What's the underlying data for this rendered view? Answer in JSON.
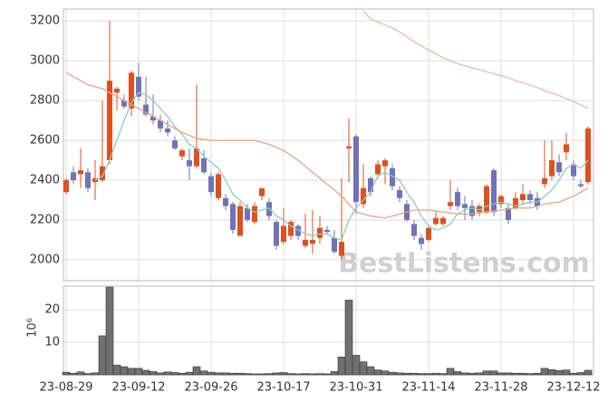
{
  "chart_data": {
    "type": "candlestick",
    "grid": true,
    "up_color": "#e0501e",
    "down_color": "#7272b8",
    "categories": [
      "23-08-29",
      null,
      null,
      null,
      null,
      null,
      null,
      null,
      null,
      null,
      "23-09-12",
      null,
      null,
      null,
      null,
      null,
      null,
      null,
      null,
      null,
      "23-09-26",
      null,
      null,
      null,
      null,
      null,
      null,
      null,
      null,
      null,
      "23-10-17",
      null,
      null,
      null,
      null,
      null,
      null,
      null,
      null,
      null,
      "23-10-31",
      null,
      null,
      null,
      null,
      null,
      null,
      null,
      null,
      null,
      "23-11-14",
      null,
      null,
      null,
      null,
      null,
      null,
      null,
      null,
      null,
      "23-11-28",
      null,
      null,
      null,
      null,
      null,
      null,
      null,
      null,
      null,
      "23-12-12",
      null,
      null
    ],
    "open": [
      2340,
      2440,
      2430,
      2440,
      2390,
      2400,
      2500,
      2840,
      2800,
      2760,
      2920,
      2780,
      2720,
      2700,
      2660,
      2600,
      2520,
      2500,
      2470,
      2510,
      2420,
      2310,
      2310,
      2280,
      2120,
      2260,
      2190,
      2320,
      2290,
      2190,
      2090,
      2120,
      2170,
      2070,
      2080,
      2110,
      2150,
      2110,
      2020,
      2560,
      2620,
      2280,
      2410,
      2430,
      2470,
      2460,
      2350,
      2280,
      2180,
      2110,
      2100,
      2180,
      2180,
      2270,
      2340,
      2280,
      2270,
      2240,
      2240,
      2450,
      2280,
      2260,
      2260,
      2300,
      2330,
      2310,
      2380,
      2420,
      2490,
      2540,
      2480,
      2380,
      2390
    ],
    "high": [
      2410,
      2470,
      2560,
      2460,
      2500,
      2800,
      3200,
      2870,
      2830,
      2950,
      2990,
      2920,
      2830,
      2730,
      2700,
      2620,
      2560,
      2560,
      2880,
      2550,
      2440,
      2440,
      2330,
      2290,
      2290,
      2280,
      2290,
      2360,
      2310,
      2200,
      2260,
      2200,
      2180,
      2230,
      2250,
      2220,
      2170,
      2150,
      2410,
      2710,
      2630,
      2480,
      2420,
      2500,
      2510,
      2480,
      2370,
      2300,
      2200,
      2130,
      2170,
      2240,
      2220,
      2400,
      2360,
      2320,
      2300,
      2280,
      2380,
      2460,
      2330,
      2280,
      2340,
      2380,
      2350,
      2340,
      2600,
      2600,
      2530,
      2640,
      2500,
      2400,
      2670
    ],
    "low": [
      2330,
      2380,
      2360,
      2340,
      2300,
      2390,
      2480,
      2750,
      2760,
      2720,
      2800,
      2720,
      2680,
      2640,
      2620,
      2550,
      2500,
      2400,
      2460,
      2430,
      2320,
      2300,
      2250,
      2130,
      2120,
      2190,
      2180,
      2300,
      2200,
      2050,
      2080,
      2100,
      2100,
      2060,
      2030,
      2080,
      2130,
      2030,
      2000,
      2390,
      2230,
      2260,
      2320,
      2410,
      2380,
      2350,
      2290,
      2190,
      2100,
      2050,
      2090,
      2170,
      2170,
      2250,
      2250,
      2200,
      2200,
      2220,
      2230,
      2220,
      2260,
      2180,
      2250,
      2280,
      2280,
      2250,
      2360,
      2400,
      2420,
      2500,
      2400,
      2360,
      2380
    ],
    "close": [
      2400,
      2400,
      2450,
      2360,
      2410,
      2470,
      2900,
      2860,
      2770,
      2940,
      2820,
      2730,
      2700,
      2660,
      2640,
      2560,
      2550,
      2470,
      2560,
      2440,
      2340,
      2430,
      2270,
      2150,
      2270,
      2200,
      2270,
      2360,
      2220,
      2070,
      2170,
      2190,
      2120,
      2100,
      2100,
      2160,
      2140,
      2040,
      2090,
      2570,
      2290,
      2360,
      2340,
      2480,
      2500,
      2370,
      2310,
      2200,
      2120,
      2080,
      2160,
      2210,
      2210,
      2290,
      2270,
      2260,
      2220,
      2270,
      2370,
      2240,
      2320,
      2200,
      2310,
      2330,
      2300,
      2270,
      2410,
      2500,
      2440,
      2580,
      2420,
      2370,
      2660
    ],
    "series": [
      {
        "color": "#82d2c2",
        "values": [
          null,
          null,
          null,
          null,
          2400,
          2420,
          2500,
          2600,
          2700,
          2790,
          2840,
          2830,
          2800,
          2760,
          2720,
          2670,
          2630,
          2580,
          2560,
          2520,
          2490,
          2460,
          2400,
          2330,
          2300,
          2260,
          2240,
          2250,
          2260,
          2220,
          2200,
          2170,
          2150,
          2130,
          2120,
          2130,
          2130,
          2110,
          2100,
          2200,
          2260,
          2300,
          2340,
          2420,
          2440,
          2420,
          2400,
          2340,
          2290,
          2220,
          2170,
          2150,
          2160,
          2180,
          2230,
          2250,
          2260,
          2250,
          2270,
          2280,
          2290,
          2280,
          2270,
          2280,
          2290,
          2290,
          2320,
          2350,
          2400,
          2460,
          2480,
          2460,
          2500
        ]
      },
      {
        "color": "#e8a47e",
        "values": [
          2940,
          2920,
          2900,
          2880,
          2870,
          2860,
          2840,
          2820,
          2800,
          2780,
          2760,
          2740,
          2720,
          2700,
          2680,
          2660,
          2640,
          2625,
          2610,
          2605,
          2600,
          2600,
          2600,
          2600,
          2600,
          2600,
          2600,
          2590,
          2580,
          2565,
          2550,
          2525,
          2500,
          2470,
          2440,
          2410,
          2380,
          2350,
          2320,
          2280,
          2240,
          2230,
          2220,
          2215,
          2210,
          2220,
          2230,
          2240,
          2250,
          2250,
          2250,
          2245,
          2240,
          2235,
          2230,
          2230,
          2230,
          2235,
          2240,
          2245,
          2250,
          2255,
          2260,
          2260,
          2260,
          2270,
          2280,
          2285,
          2290,
          2305,
          2320,
          2340,
          2360
        ]
      },
      {
        "color": "#f0b898",
        "values": [
          null,
          null,
          null,
          null,
          null,
          null,
          null,
          null,
          null,
          null,
          null,
          null,
          null,
          null,
          null,
          null,
          null,
          null,
          null,
          null,
          null,
          null,
          null,
          null,
          null,
          null,
          null,
          null,
          null,
          null,
          null,
          null,
          null,
          null,
          null,
          null,
          null,
          null,
          null,
          null,
          null,
          3250,
          3210,
          3195,
          3180,
          3165,
          3145,
          3120,
          3095,
          3075,
          3055,
          3035,
          3015,
          3000,
          2985,
          2975,
          2965,
          2955,
          2945,
          2935,
          2925,
          2915,
          2900,
          2890,
          2878,
          2865,
          2850,
          2838,
          2825,
          2810,
          2795,
          2778,
          2760
        ]
      }
    ],
    "ylim": [
      1895,
      3260
    ],
    "yticks": [
      2000,
      2200,
      2400,
      2600,
      2800,
      3000,
      3200
    ],
    "watermark": "BestListens.com",
    "volume": {
      "type": "bar",
      "color": "#707070",
      "ylabel": "10⁶",
      "ylim": [
        0,
        27.3
      ],
      "yticks": [
        10,
        20
      ],
      "values": [
        0.8,
        0.5,
        0.9,
        0.4,
        0.6,
        12,
        27,
        3,
        2.5,
        2,
        2,
        1.4,
        1,
        0.6,
        0.9,
        0.7,
        0.5,
        0.8,
        2.5,
        1.2,
        0.8,
        0.6,
        0.6,
        0.5,
        0.5,
        0.4,
        0.3,
        0.3,
        0.4,
        0.6,
        0.7,
        0.4,
        0.3,
        0.4,
        0.3,
        0.4,
        0.3,
        1,
        5.5,
        23,
        6,
        4,
        2.5,
        1.5,
        1.2,
        0.8,
        0.6,
        0.5,
        0.5,
        0.4,
        0.4,
        0.5,
        0.4,
        2,
        1,
        0.6,
        0.5,
        0.6,
        1.2,
        1.2,
        0.6,
        0.6,
        0.5,
        0.5,
        0.4,
        0.5,
        2,
        1.6,
        1.3,
        1.5,
        0.5,
        0.7,
        1.4
      ]
    }
  }
}
